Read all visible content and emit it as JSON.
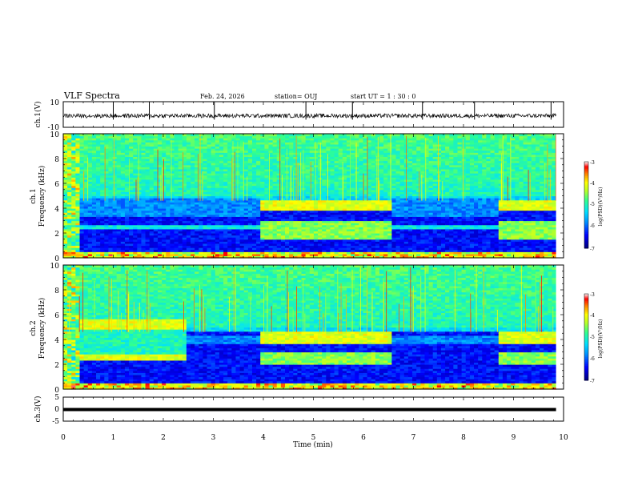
{
  "header": {
    "title": "VLF Spectra",
    "date": "Feb. 24, 2026",
    "station": "station= OUJ",
    "start_ut": "start  UT =   1 : 30 : 0"
  },
  "colorbar": {
    "label": "log(PSD)(V²/Hz)",
    "ticks": [
      "-3",
      "-4",
      "-5",
      "-6",
      "-7"
    ]
  },
  "chart_data": [
    {
      "type": "line",
      "name": "ch1-voltage",
      "ylabel": "ch.1(V)",
      "ylim": [
        -10,
        10
      ],
      "ytick_labels": [
        "10",
        "-10"
      ],
      "x_range_min": [
        0,
        9.85
      ],
      "baseline_v": -1,
      "noise_amplitude_v": 2,
      "spikes_min": [
        1.0,
        1.72,
        3.02,
        4.85,
        5.78,
        7.18,
        8.22,
        9.75
      ]
    },
    {
      "type": "heatmap",
      "name": "ch1-spectrogram",
      "ylabel": "ch.1\nFrequency (kHz)",
      "ylim": [
        0,
        10
      ],
      "ytick_labels": [
        "0",
        "2",
        "4",
        "6",
        "8",
        "10"
      ],
      "x_range_min": [
        0,
        9.85
      ],
      "z_range_log_psd": [
        -7,
        -3
      ],
      "segments": [
        {
          "t": [
            0.0,
            0.35
          ],
          "mode": "broadband",
          "upper_band_khz": [
            3.0,
            4.5
          ]
        },
        {
          "t": [
            0.35,
            3.9
          ],
          "mode": "quiet",
          "upper_band_khz": [
            3.3,
            4.9
          ],
          "mid_band_khz": [
            2.4,
            2.6
          ]
        },
        {
          "t": [
            3.9,
            6.55
          ],
          "mode": "active",
          "upper_band_khz": [
            3.8,
            4.6
          ],
          "mid_band_khz": [
            1.5,
            3.0
          ]
        },
        {
          "t": [
            6.55,
            8.7
          ],
          "mode": "quiet",
          "upper_band_khz": [
            3.3,
            4.9
          ],
          "mid_band_khz": [
            2.4,
            2.6
          ]
        },
        {
          "t": [
            8.7,
            9.85
          ],
          "mode": "active",
          "upper_band_khz": [
            3.8,
            4.6
          ],
          "mid_band_khz": [
            1.5,
            3.0
          ]
        }
      ]
    },
    {
      "type": "heatmap",
      "name": "ch2-spectrogram",
      "ylabel": "ch.2\nFrequency (kHz)",
      "ylim": [
        0,
        10
      ],
      "ytick_labels": [
        "0",
        "2",
        "4",
        "6",
        "8",
        "10"
      ],
      "x_range_min": [
        0,
        9.85
      ],
      "z_range_log_psd": [
        -7,
        -3
      ],
      "segments": [
        {
          "t": [
            0.0,
            0.35
          ],
          "mode": "broadband",
          "upper_band_khz": [
            3.0,
            4.5
          ]
        },
        {
          "t": [
            0.35,
            2.5
          ],
          "mode": "tones",
          "tone_bands_khz": [
            [
              4.8,
              5.6
            ],
            [
              2.3,
              2.9
            ]
          ]
        },
        {
          "t": [
            2.5,
            3.9
          ],
          "mode": "quiet",
          "upper_band_khz": [
            3.6,
            4.4
          ]
        },
        {
          "t": [
            3.9,
            6.55
          ],
          "mode": "active",
          "upper_band_khz": [
            3.6,
            4.6
          ],
          "mid_band_khz": [
            2.0,
            3.0
          ]
        },
        {
          "t": [
            6.55,
            8.7
          ],
          "mode": "quiet",
          "upper_band_khz": [
            3.6,
            4.4
          ]
        },
        {
          "t": [
            8.7,
            9.85
          ],
          "mode": "active",
          "upper_band_khz": [
            3.6,
            4.6
          ],
          "mid_band_khz": [
            2.0,
            3.0
          ]
        }
      ]
    },
    {
      "type": "line",
      "name": "ch3-voltage",
      "ylabel": "ch.3(V)",
      "ylim": [
        -5,
        5
      ],
      "ytick_labels": [
        "5",
        "0",
        "-5"
      ],
      "x_range_min": [
        0,
        9.85
      ],
      "level_v": 0
    }
  ],
  "xaxis": {
    "label": "Time  (min)",
    "range": [
      0,
      10
    ],
    "tick_labels": [
      "0",
      "1",
      "2",
      "3",
      "4",
      "5",
      "6",
      "7",
      "8",
      "9",
      "10"
    ]
  }
}
